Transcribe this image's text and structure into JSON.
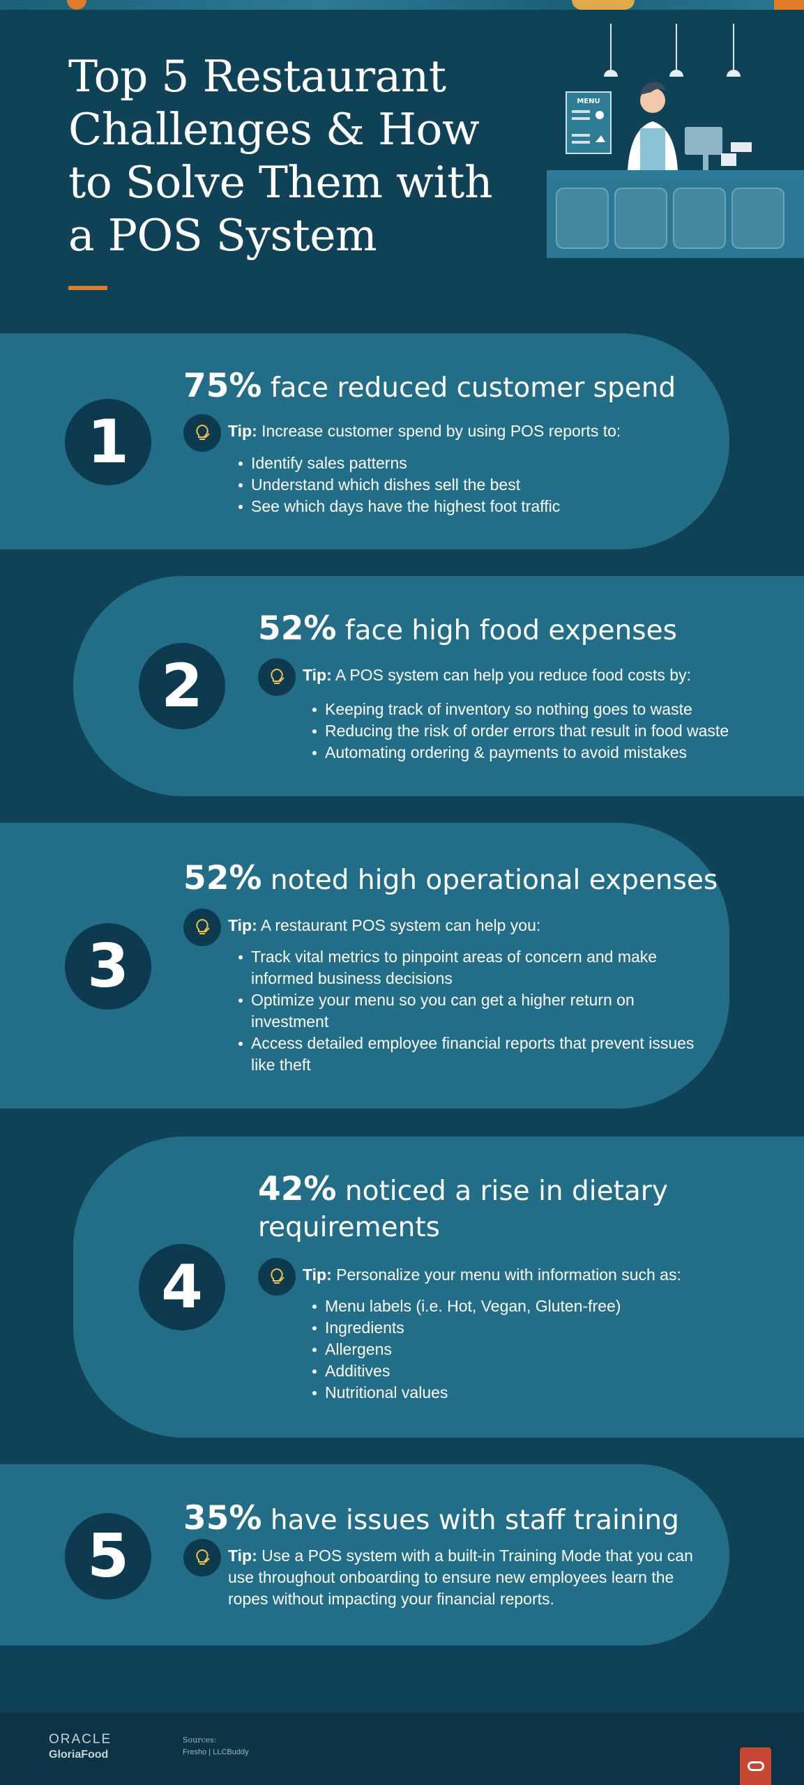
{
  "title": "Top 5 Restaurant Challenges & How to Solve Them with a POS System",
  "illustration": {
    "menu_label": "MENU"
  },
  "challenges": [
    {
      "number": "1",
      "percent": "75%",
      "heading": "face reduced customer spend",
      "tip_label": "Tip:",
      "tip": "Increase customer spend by using POS reports to:",
      "bullets": [
        "Identify sales patterns",
        "Understand which dishes sell the best",
        "See which days have the highest foot traffic"
      ]
    },
    {
      "number": "2",
      "percent": "52%",
      "heading": "face high food expenses",
      "tip_label": "Tip:",
      "tip": "A POS system can help you reduce food costs by:",
      "bullets": [
        "Keeping track of inventory so nothing goes to waste",
        "Reducing the risk of order errors that result in food waste",
        "Automating ordering & payments to avoid mistakes"
      ]
    },
    {
      "number": "3",
      "percent": "52%",
      "heading": "noted high operational expenses",
      "tip_label": "Tip:",
      "tip": "A restaurant POS system can help you:",
      "bullets": [
        "Track vital metrics to pinpoint areas of concern and make informed business decisions",
        "Optimize your menu so you can get a higher return on investment",
        "Access detailed employee financial reports that prevent issues like theft"
      ]
    },
    {
      "number": "4",
      "percent": "42%",
      "heading": "noticed a rise in dietary requirements",
      "tip_label": "Tip:",
      "tip": "Personalize your menu with information such as:",
      "bullets": [
        "Menu labels (i.e. Hot, Vegan, Gluten-free)",
        "Ingredients",
        "Allergens",
        "Additives",
        "Nutritional values"
      ]
    },
    {
      "number": "5",
      "percent": "35%",
      "heading": "have issues with staff training",
      "tip_label": "Tip:",
      "tip": "Use a POS system with a built-in Training Mode that you can use throughout onboarding to ensure new employees learn the ropes without impacting your financial reports.",
      "bullets": []
    }
  ],
  "footer": {
    "brand_line1": "ORACLE",
    "brand_line2": "GloriaFood",
    "sources_label": "Sources:",
    "sources": "Fresho | LLCBuddy"
  },
  "colors": {
    "background": "#0f4257",
    "pill": "#226e88",
    "circle": "#0d3a4f",
    "accent": "#e07b2a",
    "tip_bulb": "#f2c34b",
    "oracle_red": "#c74634"
  }
}
